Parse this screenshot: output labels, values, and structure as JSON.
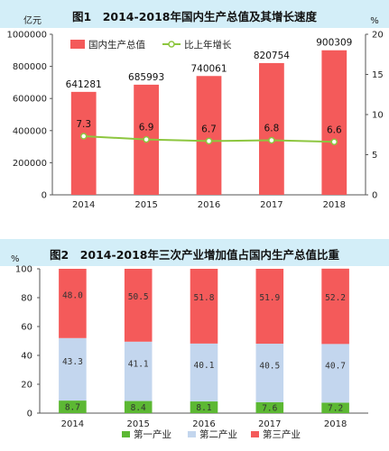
{
  "chart_data": [
    {
      "type": "bar",
      "title": "图1　2014-2018年国内生产总值及其增长速度",
      "ylabel_left": "亿元",
      "ylabel_right": "%",
      "categories": [
        "2014",
        "2015",
        "2016",
        "2017",
        "2018"
      ],
      "left_ticks": [
        "0",
        "200000",
        "400000",
        "600000",
        "800000",
        "1000000"
      ],
      "right_ticks": [
        "0",
        "5",
        "10",
        "15",
        "20"
      ],
      "ylim_left": [
        0,
        1000000
      ],
      "ylim_right": [
        0,
        20
      ],
      "series": [
        {
          "name": "国内生产总值",
          "kind": "bar",
          "axis": "left",
          "values": [
            641281,
            685993,
            740061,
            820754,
            900309
          ],
          "labels": [
            "641281",
            "685993",
            "740061",
            "820754",
            "900309"
          ]
        },
        {
          "name": "比上年增长",
          "kind": "line",
          "axis": "right",
          "values": [
            7.3,
            6.9,
            6.7,
            6.8,
            6.6
          ],
          "labels": [
            "7.3",
            "6.9",
            "6.7",
            "6.8",
            "6.6"
          ]
        }
      ],
      "colors": {
        "bar": "#f45a5a",
        "line": "#8dc63f",
        "band": "#d3eef8"
      }
    },
    {
      "type": "bar",
      "title": "图2　2014-2018年三次产业增加值占国内生产总值比重",
      "ylabel": "%",
      "categories": [
        "2014",
        "2015",
        "2016",
        "2017",
        "2018"
      ],
      "y_ticks": [
        "0",
        "20",
        "40",
        "60",
        "80",
        "100"
      ],
      "ylim": [
        0,
        100
      ],
      "stacked": true,
      "series": [
        {
          "name": "第一产业",
          "values": [
            8.7,
            8.4,
            8.1,
            7.6,
            7.2
          ],
          "labels": [
            "8.7",
            "8.4",
            "8.1",
            "7.6",
            "7.2"
          ],
          "color": "#5cb833"
        },
        {
          "name": "第二产业",
          "values": [
            43.3,
            41.1,
            40.1,
            40.5,
            40.7
          ],
          "labels": [
            "43.3",
            "41.1",
            "40.1",
            "40.5",
            "40.7"
          ],
          "color": "#c3d6ee"
        },
        {
          "name": "第三产业",
          "values": [
            48.0,
            50.5,
            51.8,
            51.9,
            52.2
          ],
          "labels": [
            "48.0",
            "50.5",
            "51.8",
            "51.9",
            "52.2"
          ],
          "color": "#f45a5a"
        }
      ],
      "colors": {
        "band": "#d3eef8"
      }
    }
  ]
}
